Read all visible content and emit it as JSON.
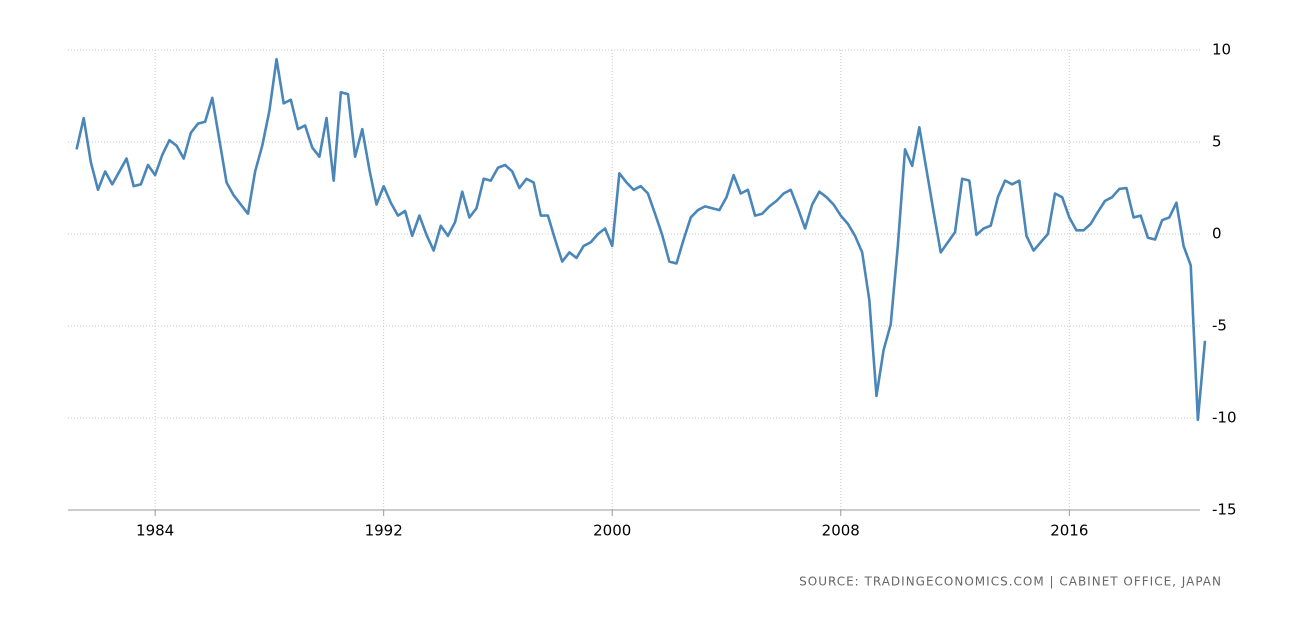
{
  "chart_data": {
    "type": "line",
    "source": "SOURCE: TRADINGECONOMICS.COM | CABINET OFFICE, JAPAN",
    "color": "#4a86b8",
    "grid": true,
    "xlim": [
      1980.95,
      2020.75
    ],
    "xticks": [
      1984,
      1992,
      2000,
      2008,
      2016
    ],
    "ylim": [
      -15,
      10
    ],
    "yticks": [
      -15,
      -10,
      -5,
      0,
      5,
      10
    ],
    "x": [
      1981.25,
      1981.5,
      1981.75,
      1982,
      1982.25,
      1982.5,
      1982.75,
      1983,
      1983.25,
      1983.5,
      1983.75,
      1984,
      1984.25,
      1984.5,
      1984.75,
      1985,
      1985.25,
      1985.5,
      1985.75,
      1986,
      1986.25,
      1986.5,
      1986.75,
      1987,
      1987.25,
      1987.5,
      1987.75,
      1988,
      1988.25,
      1988.5,
      1988.75,
      1989,
      1989.25,
      1989.5,
      1989.75,
      1990,
      1990.25,
      1990.5,
      1990.75,
      1991,
      1991.25,
      1991.5,
      1991.75,
      1992,
      1992.25,
      1992.5,
      1992.75,
      1993,
      1993.25,
      1993.5,
      1993.75,
      1994,
      1994.25,
      1994.5,
      1994.75,
      1995,
      1995.25,
      1995.5,
      1995.75,
      1996,
      1996.25,
      1996.5,
      1996.75,
      1997,
      1997.25,
      1997.5,
      1997.75,
      1998,
      1998.25,
      1998.5,
      1998.75,
      1999,
      1999.25,
      1999.5,
      1999.75,
      2000,
      2000.25,
      2000.5,
      2000.75,
      2001,
      2001.25,
      2001.5,
      2001.75,
      2002,
      2002.25,
      2002.5,
      2002.75,
      2003,
      2003.25,
      2003.5,
      2003.75,
      2004,
      2004.25,
      2004.5,
      2004.75,
      2005,
      2005.25,
      2005.5,
      2005.75,
      2006,
      2006.25,
      2006.5,
      2006.75,
      2007,
      2007.25,
      2007.5,
      2007.75,
      2008,
      2008.25,
      2008.5,
      2008.75,
      2009,
      2009.25,
      2009.5,
      2009.75,
      2010,
      2010.25,
      2010.5,
      2010.75,
      2011,
      2011.25,
      2011.5,
      2011.75,
      2012,
      2012.25,
      2012.5,
      2012.75,
      2013,
      2013.25,
      2013.5,
      2013.75,
      2014,
      2014.25,
      2014.5,
      2014.75,
      2015,
      2015.25,
      2015.5,
      2015.75,
      2016,
      2016.25,
      2016.5,
      2016.75,
      2017,
      2017.25,
      2017.5,
      2017.75,
      2018,
      2018.25,
      2018.5,
      2018.75,
      2019,
      2019.25,
      2019.5,
      2019.75,
      2020,
      2020.25,
      2020.5,
      2020.75
    ],
    "values": [
      4.6,
      6.3,
      3.9,
      2.4,
      3.4,
      2.7,
      3.4,
      4.1,
      2.6,
      2.7,
      3.75,
      3.2,
      4.3,
      5.1,
      4.8,
      4.1,
      5.5,
      6.0,
      6.1,
      7.4,
      5.1,
      2.8,
      2.1,
      1.6,
      1.1,
      3.4,
      4.8,
      6.7,
      9.5,
      7.1,
      7.3,
      5.7,
      5.9,
      4.7,
      4.2,
      6.3,
      2.9,
      7.7,
      7.6,
      4.2,
      5.7,
      3.5,
      1.6,
      2.6,
      1.7,
      1.0,
      1.25,
      -0.1,
      1.0,
      -0.05,
      -0.9,
      0.45,
      -0.1,
      0.65,
      2.3,
      0.9,
      1.4,
      3.0,
      2.9,
      3.6,
      3.75,
      3.4,
      2.5,
      3.0,
      2.8,
      1.0,
      1.0,
      -0.3,
      -1.5,
      -1.0,
      -1.3,
      -0.65,
      -0.45,
      0,
      0.3,
      -0.65,
      3.3,
      2.8,
      2.4,
      2.6,
      2.2,
      1.1,
      -0.05,
      -1.5,
      -1.6,
      -0.3,
      0.9,
      1.3,
      1.5,
      1.4,
      1.3,
      2.0,
      3.2,
      2.2,
      2.4,
      1.0,
      1.1,
      1.5,
      1.8,
      2.2,
      2.4,
      1.4,
      0.3,
      1.6,
      2.3,
      2.0,
      1.6,
      1.0,
      0.55,
      -0.1,
      -1.0,
      -3.6,
      -8.8,
      -6.3,
      -4.9,
      -0.6,
      4.6,
      3.7,
      5.8,
      3.5,
      1.2,
      -1.0,
      -0.45,
      0.1,
      3.0,
      2.9,
      -0.05,
      0.3,
      0.45,
      2.0,
      2.9,
      2.7,
      2.9,
      -0.1,
      -0.9,
      -0.45,
      0,
      2.2,
      2.0,
      0.9,
      0.2,
      0.2,
      0.55,
      1.2,
      1.8,
      2.0,
      2.45,
      2.5,
      0.9,
      1.0,
      -0.2,
      -0.3,
      0.75,
      0.9,
      1.7,
      -0.65,
      -1.7,
      -10.1,
      -5.8
    ]
  }
}
